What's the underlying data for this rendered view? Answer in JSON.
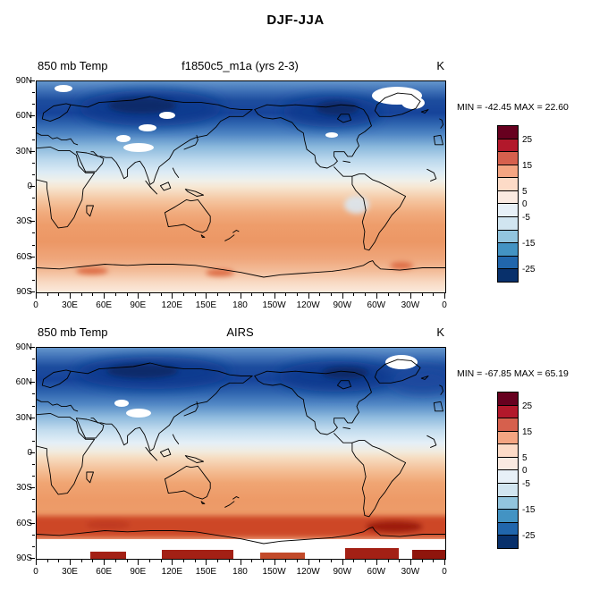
{
  "title": "DJF-JJA",
  "panels": [
    {
      "left_label": "850 mb Temp",
      "center_label": "f1850c5_m1a (yrs 2-3)",
      "unit_label": "K",
      "min_max": "MIN = -42.45 MAX = 22.60"
    },
    {
      "left_label": "850 mb Temp",
      "center_label": "AIRS",
      "unit_label": "K",
      "min_max": "MIN = -67.85 MAX = 65.19"
    }
  ],
  "axes": {
    "lat_ticks": [
      "90N",
      "60N",
      "30N",
      "0",
      "30S",
      "60S",
      "90S"
    ],
    "lon_ticks": [
      "0",
      "30E",
      "60E",
      "90E",
      "120E",
      "150E",
      "180",
      "150W",
      "120W",
      "90W",
      "60W",
      "30W",
      "0"
    ]
  },
  "colorbar": {
    "labels": [
      "25",
      "15",
      "5",
      "0",
      "-5",
      "-15",
      "-25"
    ],
    "boundaries": [
      1,
      3,
      5,
      6,
      7,
      9,
      11
    ],
    "colors_top_to_bottom": [
      "#67001f",
      "#b2182b",
      "#d6604d",
      "#f4a582",
      "#fddbc7",
      "#faeae1",
      "#e7f0f7",
      "#d1e5f0",
      "#92c5de",
      "#4393c3",
      "#2166ac",
      "#08306b"
    ]
  },
  "chart_data": [
    {
      "type": "heatmap",
      "title": "DJF-JJA",
      "subtitle": "f1850c5_m1a (yrs 2-3)",
      "variable": "850 mb Temp",
      "units": "K",
      "stat_min": -42.45,
      "stat_max": 22.6,
      "projection": "equirectangular, longitude 0E to 0E (Pacific-centered at 180)",
      "x_ticks": [
        "0",
        "30E",
        "60E",
        "90E",
        "120E",
        "150E",
        "180",
        "150W",
        "120W",
        "90W",
        "60W",
        "30W",
        "0"
      ],
      "y_ticks": [
        "90N",
        "60N",
        "30N",
        "0",
        "30S",
        "60S",
        "90S"
      ],
      "contour_levels": [
        -30,
        -25,
        -20,
        -15,
        -10,
        -5,
        0,
        5,
        10,
        15,
        20,
        25,
        30
      ],
      "legend_position": "right",
      "zonal_mean_estimate": {
        "lat": [
          90,
          75,
          60,
          45,
          30,
          15,
          0,
          -15,
          -30,
          -45,
          -60,
          -75,
          -90
        ],
        "value": [
          -16,
          -26,
          -24,
          -14,
          -7,
          -2,
          2,
          6,
          9,
          8,
          6,
          4,
          2
        ]
      }
    },
    {
      "type": "heatmap",
      "title": "DJF-JJA",
      "subtitle": "AIRS",
      "variable": "850 mb Temp",
      "units": "K",
      "stat_min": -67.85,
      "stat_max": 65.19,
      "projection": "equirectangular, longitude 0E to 0E (Pacific-centered at 180)",
      "x_ticks": [
        "0",
        "30E",
        "60E",
        "90E",
        "120E",
        "150E",
        "180",
        "150W",
        "120W",
        "90W",
        "60W",
        "30W",
        "0"
      ],
      "y_ticks": [
        "90N",
        "60N",
        "30N",
        "0",
        "30S",
        "60S",
        "90S"
      ],
      "contour_levels": [
        -30,
        -25,
        -20,
        -15,
        -10,
        -5,
        0,
        5,
        10,
        15,
        20,
        25,
        30
      ],
      "legend_position": "right",
      "zonal_mean_estimate": {
        "lat": [
          90,
          75,
          60,
          45,
          30,
          15,
          0,
          -15,
          -30,
          -45,
          -60,
          -75,
          -90
        ],
        "value": [
          -16,
          -27,
          -24,
          -14,
          -6,
          -1,
          3,
          7,
          10,
          9,
          15,
          28,
          20
        ]
      }
    }
  ]
}
